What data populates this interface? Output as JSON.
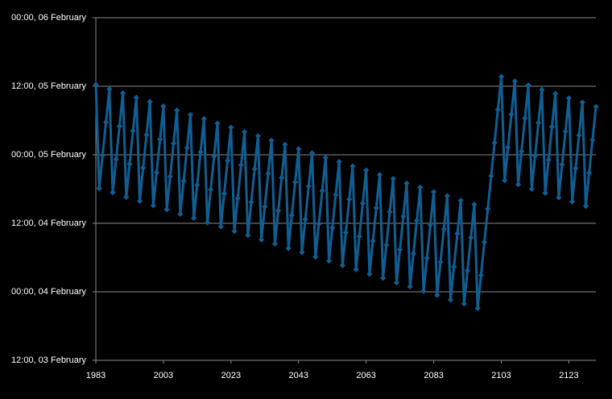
{
  "chart_data": {
    "type": "line",
    "x": [
      1983,
      1984,
      1985,
      1986,
      1987,
      1988,
      1989,
      1990,
      1991,
      1992,
      1993,
      1994,
      1995,
      1996,
      1997,
      1998,
      1999,
      2000,
      2001,
      2002,
      2003,
      2004,
      2005,
      2006,
      2007,
      2008,
      2009,
      2010,
      2011,
      2012,
      2013,
      2014,
      2015,
      2016,
      2017,
      2018,
      2019,
      2020,
      2021,
      2022,
      2023,
      2024,
      2025,
      2026,
      2027,
      2028,
      2029,
      2030,
      2031,
      2032,
      2033,
      2034,
      2035,
      2036,
      2037,
      2038,
      2039,
      2040,
      2041,
      2042,
      2043,
      2044,
      2045,
      2046,
      2047,
      2048,
      2049,
      2050,
      2051,
      2052,
      2053,
      2054,
      2055,
      2056,
      2057,
      2058,
      2059,
      2060,
      2061,
      2062,
      2063,
      2064,
      2065,
      2066,
      2067,
      2068,
      2069,
      2070,
      2071,
      2072,
      2073,
      2074,
      2075,
      2076,
      2077,
      2078,
      2079,
      2080,
      2081,
      2082,
      2083,
      2084,
      2085,
      2086,
      2087,
      2088,
      2089,
      2090,
      2091,
      2092,
      2093,
      2094,
      2095,
      2096,
      2097,
      2098,
      2099,
      2100,
      2101,
      2102,
      2103,
      2104,
      2105,
      2106,
      2107,
      2108,
      2109,
      2110,
      2111,
      2112,
      2113,
      2114,
      2115,
      2116,
      2117,
      2118,
      2119,
      2120,
      2121,
      2122,
      2123,
      2124,
      2125,
      2126,
      2127,
      2128,
      2129,
      2130,
      2131
    ],
    "values": [
      60.3,
      42.1,
      47.9,
      53.7,
      59.5,
      41.4,
      47.2,
      53.0,
      58.8,
      40.6,
      46.4,
      52.2,
      58.0,
      39.9,
      45.7,
      51.5,
      57.3,
      39.1,
      44.9,
      50.7,
      56.5,
      38.4,
      44.2,
      50.0,
      55.8,
      37.6,
      43.4,
      49.2,
      55.0,
      36.9,
      42.7,
      48.5,
      54.3,
      36.1,
      41.9,
      47.7,
      53.5,
      35.4,
      41.2,
      47.0,
      52.8,
      34.6,
      40.4,
      46.2,
      52.0,
      33.9,
      39.7,
      45.5,
      51.3,
      33.1,
      38.9,
      44.7,
      50.5,
      32.4,
      38.2,
      44.0,
      49.8,
      31.6,
      37.4,
      43.2,
      49.0,
      30.9,
      36.7,
      42.5,
      48.3,
      30.1,
      35.9,
      41.7,
      47.5,
      29.4,
      35.2,
      41.0,
      46.8,
      28.6,
      34.4,
      40.2,
      46.0,
      27.9,
      33.7,
      39.5,
      45.3,
      27.1,
      32.9,
      38.7,
      44.5,
      26.4,
      32.2,
      38.0,
      43.8,
      25.6,
      31.4,
      37.2,
      43.0,
      24.9,
      30.7,
      36.5,
      42.3,
      24.1,
      29.9,
      35.7,
      41.5,
      23.4,
      29.2,
      35.0,
      40.8,
      22.6,
      28.4,
      34.2,
      40.0,
      21.9,
      27.7,
      33.5,
      39.3,
      21.1,
      26.9,
      32.7,
      38.5,
      44.3,
      50.1,
      55.9,
      61.7,
      43.5,
      49.3,
      55.1,
      60.9,
      42.8,
      48.6,
      54.4,
      60.2,
      42.0,
      47.8,
      53.6,
      59.4,
      41.3,
      47.1,
      52.9,
      58.7,
      40.5,
      46.3,
      52.1,
      57.9,
      39.8,
      45.6,
      51.4,
      57.2,
      39.0,
      44.8,
      50.6,
      56.4
    ],
    "color": "#0f5f94",
    "xlim": [
      1983,
      2131
    ],
    "xticks": [
      1983,
      2003,
      2023,
      2043,
      2063,
      2083,
      2103,
      2123
    ],
    "ylim": [
      12,
      72
    ],
    "yticks": [
      {
        "value": 12,
        "label": "12:00, 03 February"
      },
      {
        "value": 24,
        "label": "00:00, 04 February"
      },
      {
        "value": 36,
        "label": "12:00, 04 February"
      },
      {
        "value": 48,
        "label": "00:00, 05 February"
      },
      {
        "value": 60,
        "label": "12:00, 05 February"
      },
      {
        "value": 72,
        "label": "00:00, 06 February"
      }
    ],
    "grid": true
  }
}
